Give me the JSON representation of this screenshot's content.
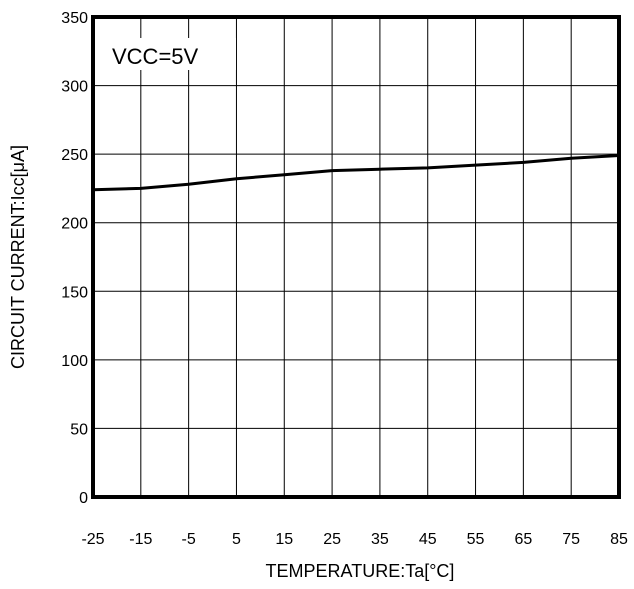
{
  "chart_data": {
    "type": "line",
    "title": "",
    "xlabel": "TEMPERATURE:Ta[°C]",
    "ylabel": "CIRCUIT CURRENT:Icc[μA]",
    "annotation": "VCC=5V",
    "xlim": [
      -25,
      85
    ],
    "ylim": [
      0,
      350
    ],
    "x_ticks": [
      "-25",
      "-15",
      "-5",
      "5",
      "15",
      "25",
      "35",
      "45",
      "55",
      "65",
      "75",
      "85"
    ],
    "y_ticks": [
      "0",
      "50",
      "100",
      "150",
      "200",
      "250",
      "300",
      "350"
    ],
    "grid": true,
    "series": [
      {
        "x": [
          -25,
          -15,
          -5,
          5,
          15,
          25,
          35,
          45,
          55,
          65,
          75,
          85
        ],
        "y": [
          224,
          225,
          228,
          232,
          235,
          238,
          239,
          240,
          242,
          244,
          247,
          249
        ]
      }
    ]
  }
}
